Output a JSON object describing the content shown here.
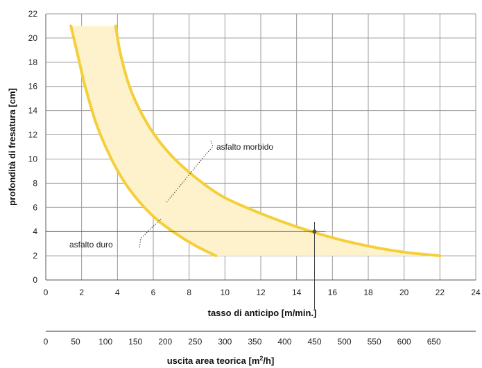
{
  "chart_data": {
    "type": "line",
    "title": "",
    "xlabel": "tasso di anticipo  [m/min.]",
    "ylabel": "profondità di fresatura [cm]",
    "x2label_prefix": "uscita area teorica [m",
    "x2label_sup": "2",
    "x2label_suffix": "/h]",
    "xlim": [
      0,
      24
    ],
    "ylim": [
      0,
      22
    ],
    "x2lim": [
      0,
      720
    ],
    "grid": true,
    "x_ticks": [
      "0",
      "2",
      "4",
      "6",
      "8",
      "10",
      "12",
      "14",
      "16",
      "18",
      "20",
      "22",
      "24"
    ],
    "y_ticks": [
      "0",
      "2",
      "4",
      "6",
      "8",
      "10",
      "12",
      "14",
      "16",
      "18",
      "20",
      "22"
    ],
    "x2_ticks": [
      "0",
      "50",
      "100",
      "150",
      "200",
      "250",
      "300",
      "350",
      "400",
      "450",
      "500",
      "550",
      "600",
      "650"
    ],
    "series": [
      {
        "name": "asfalto duro",
        "color": "#f5cf3a",
        "x": [
          1.4,
          1.8,
          2.2,
          2.8,
          3.5,
          4.3,
          5.2,
          6.2,
          7.3,
          8.4,
          9.5
        ],
        "y": [
          21,
          18.5,
          16,
          13,
          10.5,
          8.3,
          6.5,
          5,
          3.8,
          2.8,
          2
        ]
      },
      {
        "name": "asfalto morbido",
        "color": "#f5cf3a",
        "x": [
          3.9,
          4.2,
          4.8,
          5.8,
          7,
          8.5,
          10,
          12,
          14,
          16,
          18,
          20,
          22
        ],
        "y": [
          21,
          18.5,
          15.5,
          12.6,
          10.3,
          8.3,
          6.8,
          5.5,
          4.4,
          3.5,
          2.8,
          2.3,
          2
        ]
      }
    ],
    "band_fill": "#fdf2cc",
    "example": {
      "x": 15,
      "y": 4
    },
    "annotations": [
      "asfalto morbido",
      "asfalto duro"
    ]
  }
}
